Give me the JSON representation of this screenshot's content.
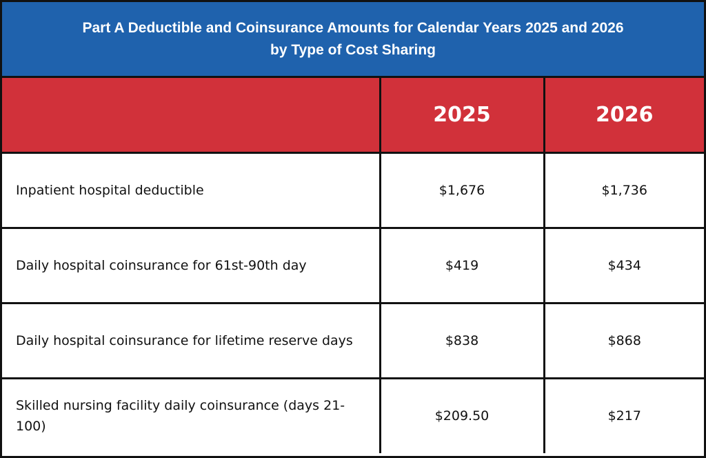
{
  "title": {
    "line1": "Part A Deductible and Coinsurance Amounts for Calendar Years 2025 and 2026",
    "line2": "by Type of Cost Sharing"
  },
  "header": {
    "col1": "",
    "col2": "2025",
    "col3": "2026"
  },
  "colors": {
    "title_bg": "#1f62ad",
    "header_bg": "#d1313a",
    "border": "#111111"
  },
  "rows": [
    {
      "label": "Inpatient hospital deductible",
      "y2025": "$1,676",
      "y2026": "$1,736"
    },
    {
      "label": "Daily hospital coinsurance for 61st-90th day",
      "y2025": "$419",
      "y2026": "$434"
    },
    {
      "label": "Daily hospital coinsurance for lifetime reserve days",
      "y2025": "$838",
      "y2026": "$868"
    },
    {
      "label": "Skilled nursing facility daily coinsurance (days 21-100)",
      "y2025": "$209.50",
      "y2026": "$217"
    }
  ]
}
